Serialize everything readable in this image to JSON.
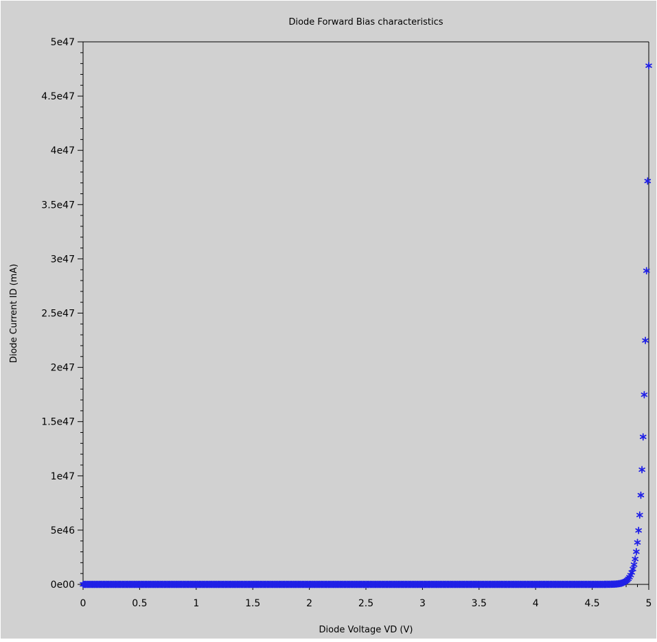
{
  "colors": {
    "background": "#d1d1d1",
    "frame": "#ffffff",
    "axis": "#000000",
    "marker": "#2020e6"
  },
  "chart_data": {
    "type": "scatter",
    "title": "Diode Forward Bias characteristics",
    "xlabel": "Diode Voltage VD (V)",
    "ylabel": "Diode Current ID (mA)",
    "xlim": [
      0,
      5
    ],
    "ylim": [
      0,
      5e+47
    ],
    "grid": false,
    "legend": "none",
    "marker": "asterisk",
    "x_ticks": [
      {
        "value": 0,
        "label": "0"
      },
      {
        "value": 0.5,
        "label": "0.5"
      },
      {
        "value": 1,
        "label": "1"
      },
      {
        "value": 1.5,
        "label": "1.5"
      },
      {
        "value": 2,
        "label": "2"
      },
      {
        "value": 2.5,
        "label": "2.5"
      },
      {
        "value": 3,
        "label": "3"
      },
      {
        "value": 3.5,
        "label": "3.5"
      },
      {
        "value": 4,
        "label": "4"
      },
      {
        "value": 4.5,
        "label": "4.5"
      },
      {
        "value": 5,
        "label": "5"
      }
    ],
    "y_ticks": [
      {
        "value": 0,
        "label": "0e00"
      },
      {
        "value": 5e+46,
        "label": "5e46"
      },
      {
        "value": 1e+47,
        "label": "1e47"
      },
      {
        "value": 1.5e+47,
        "label": "1.5e47"
      },
      {
        "value": 2e+47,
        "label": "2e47"
      },
      {
        "value": 2.5e+47,
        "label": "2.5e47"
      },
      {
        "value": 3e+47,
        "label": "3e47"
      },
      {
        "value": 3.5e+47,
        "label": "3.5e47"
      },
      {
        "value": 4e+47,
        "label": "4e47"
      },
      {
        "value": 4.5e+47,
        "label": "4.5e47"
      },
      {
        "value": 5e+47,
        "label": "5e47"
      }
    ],
    "x_minor_per_major": 5,
    "y_minor_per_major": 5,
    "series": [
      {
        "sweep": {
          "start": 0,
          "step": 0.01,
          "end": 5
        },
        "law": {
          "form": "exponential",
          "y_at_x_end": 4.78e+47,
          "growth_per_volt": 25.15
        }
      }
    ]
  }
}
